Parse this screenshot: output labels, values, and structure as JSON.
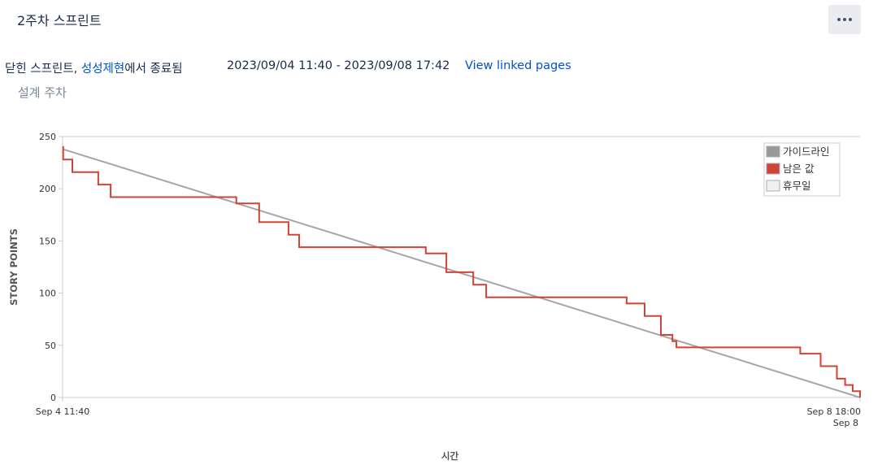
{
  "header": {
    "sprint_name": "2주차 스프린트",
    "more_icon": "ellipsis-icon"
  },
  "meta": {
    "status_prefix": "닫힌 스프린트, ",
    "board_name": "성성제현",
    "status_suffix": "에서 종료됨",
    "date_range": "2023/09/04 11:40 - 2023/09/08 17:42",
    "view_linked_pages": "View linked pages",
    "sprint_goal": "설계 주차"
  },
  "chart_data": {
    "type": "line",
    "xlabel": "시간",
    "ylabel": "STORY POINTS",
    "ylim": [
      0,
      250
    ],
    "yticks": [
      0,
      50,
      100,
      150,
      200,
      250
    ],
    "x_tick_labels": [
      {
        "label": "Sep 4 11:40",
        "x": 0
      },
      {
        "label": "Sep 8 18:00",
        "sublabel": "Sep 8",
        "x": 4.264
      }
    ],
    "x_unit": "days since Sep 4 11:40",
    "x_range": [
      0,
      4.264
    ],
    "grid": false,
    "legend_position": "top-right",
    "legend": [
      {
        "name": "가이드라인",
        "color": "#999999"
      },
      {
        "name": "남은 값",
        "color": "#d04437"
      },
      {
        "name": "휴무일",
        "color": "#f0f0f0"
      }
    ],
    "series": [
      {
        "name": "가이드라인",
        "color": "#a8a6a8",
        "points": [
          [
            0,
            238
          ],
          [
            4.264,
            0
          ]
        ]
      },
      {
        "name": "남은 값",
        "color": "#d04437",
        "step_points": [
          [
            0,
            240
          ],
          [
            0.003,
            228
          ],
          [
            0.052,
            216
          ],
          [
            0.191,
            204
          ],
          [
            0.257,
            192
          ],
          [
            0.929,
            186
          ],
          [
            1.051,
            168
          ],
          [
            1.208,
            156
          ],
          [
            1.265,
            144
          ],
          [
            1.942,
            138
          ],
          [
            2.052,
            120
          ],
          [
            2.196,
            108
          ],
          [
            2.265,
            96
          ],
          [
            3.016,
            90
          ],
          [
            3.112,
            78
          ],
          [
            3.199,
            60
          ],
          [
            3.261,
            54
          ],
          [
            3.282,
            48
          ],
          [
            3.944,
            42
          ],
          [
            4.053,
            30
          ],
          [
            4.14,
            18
          ],
          [
            4.184,
            12
          ],
          [
            4.225,
            6
          ],
          [
            4.264,
            0
          ]
        ]
      }
    ]
  }
}
